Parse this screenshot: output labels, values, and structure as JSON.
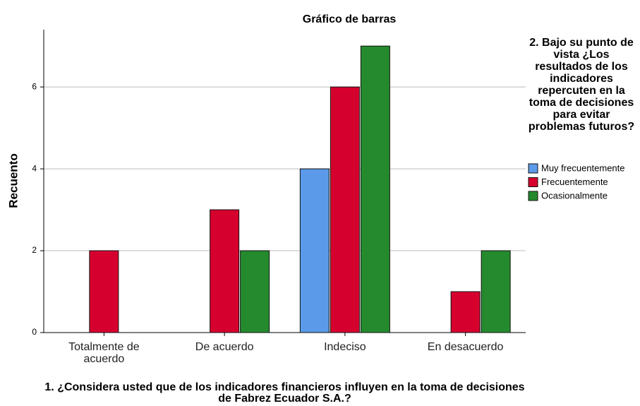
{
  "chart_data": {
    "type": "bar",
    "title": "Gráfico de barras",
    "x_label": "1. ¿Considera usted que de los indicadores financieros influyen en la toma de decisiones de Fabrez Ecuador S.A.?",
    "y_label": "Recuento",
    "legend_title": "2. Bajo su punto de vista ¿Los resultados de los indicadores repercuten en la toma de decisiones para evitar problemas futuros?",
    "categories": [
      "Totalmente de acuerdo",
      "De acuerdo",
      "Indeciso",
      "En desacuerdo"
    ],
    "series": [
      {
        "name": "Muy frecuentemente",
        "color": "#5b9ae8",
        "values": [
          0,
          0,
          4,
          0
        ]
      },
      {
        "name": "Frecuentemente",
        "color": "#d6002e",
        "values": [
          2,
          3,
          6,
          1
        ]
      },
      {
        "name": "Ocasionalmente",
        "color": "#258a2e",
        "values": [
          0,
          2,
          7,
          2
        ]
      }
    ],
    "ylim": [
      0,
      7.4
    ],
    "yticks": [
      0,
      2,
      4,
      6
    ],
    "grid": true,
    "legend": "right"
  }
}
